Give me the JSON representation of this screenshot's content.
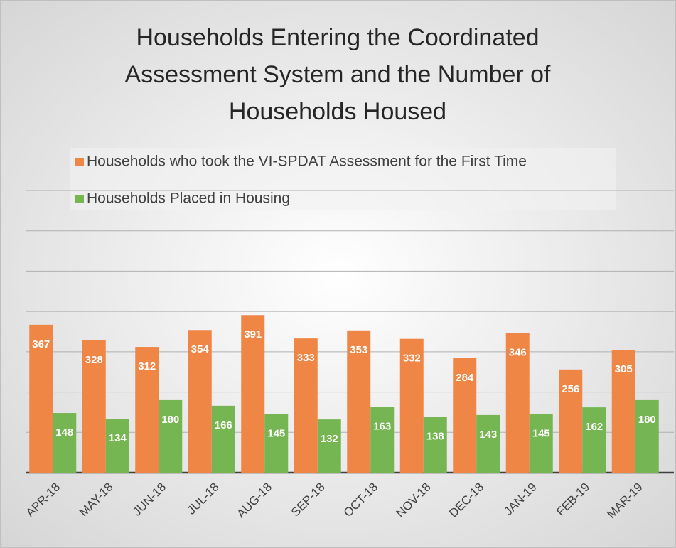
{
  "chart_data": {
    "type": "bar",
    "title_lines": [
      "Households Entering the Coordinated",
      "Assessment System and the Number of",
      "Households Housed"
    ],
    "categories": [
      "APR-18",
      "MAY-18",
      "JUN-18",
      "JUL-18",
      "AUG-18",
      "SEP-18",
      "OCT-18",
      "NOV-18",
      "DEC-18",
      "JAN-19",
      "FEB-19",
      "MAR-19"
    ],
    "series": [
      {
        "name": "Households who took the VI-SPDAT Assessment for the First Time",
        "color": "#ef8646",
        "values": [
          367,
          328,
          312,
          354,
          391,
          333,
          353,
          332,
          284,
          346,
          256,
          305
        ]
      },
      {
        "name": "Households Placed in Housing",
        "color": "#75b652",
        "values": [
          148,
          134,
          180,
          166,
          145,
          132,
          163,
          138,
          143,
          145,
          162,
          180
        ]
      }
    ],
    "ylim": [
      0,
      700
    ],
    "yticks": [
      0,
      100,
      200,
      300,
      400,
      500,
      600,
      700
    ],
    "grid": true,
    "legend": "top"
  }
}
